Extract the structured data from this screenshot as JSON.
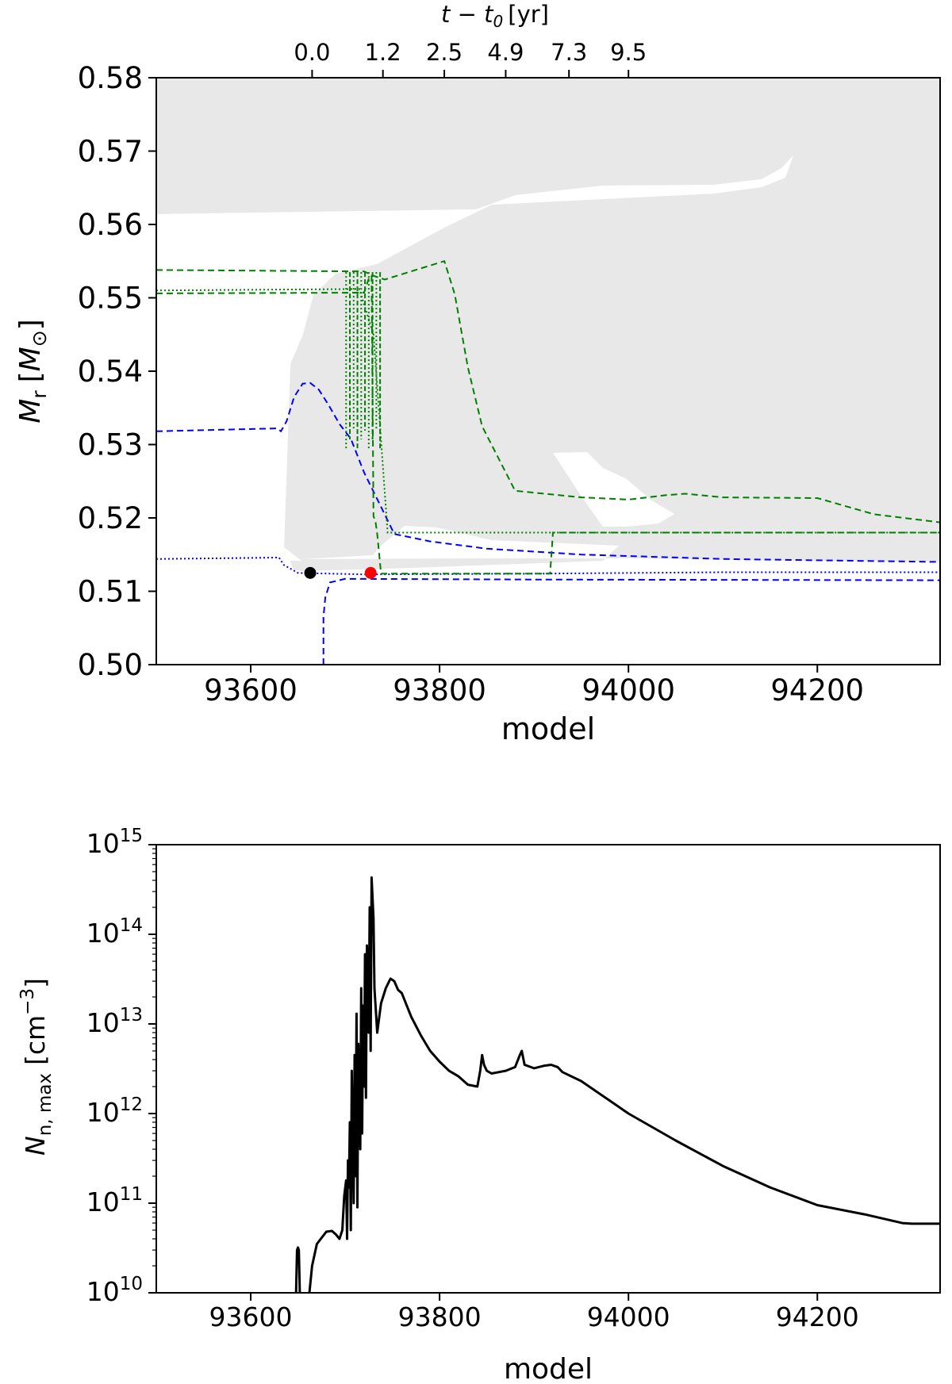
{
  "chart_data": [
    {
      "type": "line",
      "panel": "top",
      "xlabel": "model",
      "ylabel_main": "M",
      "ylabel_sub": "r",
      "ylabel_unit_prefix": "[",
      "ylabel_unit_main": "M",
      "ylabel_unit_sub": "⊙",
      "ylabel_unit_suffix": "]",
      "top_xlabel": "t − t",
      "top_xlabel_sub": "0",
      "top_xlabel_unit": "[yr]",
      "xlim": [
        93500,
        94330
      ],
      "ylim": [
        0.5,
        0.58
      ],
      "x_ticks": [
        93600,
        93800,
        94000,
        94200
      ],
      "x_tick_labels": [
        "93600",
        "93800",
        "94000",
        "94200"
      ],
      "y_ticks": [
        0.5,
        0.51,
        0.52,
        0.53,
        0.54,
        0.55,
        0.56,
        0.57,
        0.58
      ],
      "y_tick_labels": [
        "0.50",
        "0.51",
        "0.52",
        "0.53",
        "0.54",
        "0.55",
        "0.56",
        "0.57",
        "0.58"
      ],
      "top_ticks_x": [
        93665,
        93740,
        93805,
        93870,
        93937,
        94000
      ],
      "top_tick_labels": [
        "0.0",
        "1.2",
        "2.5",
        "4.9",
        "7.3",
        "9.5"
      ],
      "convective_region_color": "#e8e8e8",
      "series": [
        {
          "color": "#0000ff",
          "style": "dashed",
          "x": [
            93500,
            93628,
            93632,
            93638,
            93646,
            93655,
            93663,
            93672,
            93682,
            93694,
            93706,
            93720,
            93738,
            93752,
            93790,
            93850,
            93950,
            94100,
            94330
          ],
          "y": [
            0.5318,
            0.5322,
            0.5318,
            0.5332,
            0.5365,
            0.5383,
            0.5384,
            0.5375,
            0.5355,
            0.5328,
            0.5308,
            0.5262,
            0.5215,
            0.5178,
            0.5168,
            0.5158,
            0.515,
            0.5144,
            0.514
          ]
        },
        {
          "color": "#0000ff",
          "style": "dotted",
          "x": [
            93500,
            93630,
            93635,
            93650,
            93720,
            93900,
            94100,
            94330
          ],
          "y": [
            0.5144,
            0.5146,
            0.5136,
            0.5125,
            0.5123,
            0.5124,
            0.5126,
            0.5126
          ]
        },
        {
          "color": "#0000ff",
          "style": "dashed",
          "x": [
            93677,
            93677,
            93679,
            93684,
            93700,
            93900,
            94330
          ],
          "y": [
            0.5,
            0.5065,
            0.5092,
            0.5112,
            0.5117,
            0.5116,
            0.5115
          ]
        },
        {
          "color": "#008000",
          "style": "dashed",
          "x": [
            93500,
            93720,
            93730,
            93742,
            93805,
            93816,
            93830,
            93845,
            93880,
            93950,
            94000,
            94040,
            94060,
            94100,
            94200,
            94260,
            94330
          ],
          "y": [
            0.5538,
            0.5536,
            0.553,
            0.5525,
            0.555,
            0.5505,
            0.5405,
            0.5325,
            0.5237,
            0.5228,
            0.5225,
            0.5231,
            0.5233,
            0.5228,
            0.5227,
            0.5205,
            0.5194
          ]
        },
        {
          "color": "#008000",
          "style": "dashed",
          "x": [
            93500,
            93720,
            93726,
            93728,
            93730,
            93732,
            93734,
            93738,
            93800,
            93917,
            93920,
            94330
          ],
          "y": [
            0.5506,
            0.5507,
            0.553,
            0.553,
            0.5202,
            0.5196,
            0.5178,
            0.5124,
            0.5124,
            0.5124,
            0.518,
            0.518
          ]
        },
        {
          "color": "#008000",
          "style": "dotted",
          "x": [
            93500,
            93715,
            93730,
            93745,
            93800,
            94330
          ],
          "y": [
            0.551,
            0.5512,
            0.545,
            0.518,
            0.518,
            0.518
          ]
        }
      ],
      "spikes_green": [
        93701,
        93705,
        93709,
        93713,
        93717,
        93721,
        93725,
        93729,
        93733,
        93737
      ],
      "markers": [
        {
          "x": 93663,
          "y": 0.5125,
          "color": "#000000"
        },
        {
          "x": 93727,
          "y": 0.5125,
          "color": "#ff0000"
        }
      ]
    },
    {
      "type": "line",
      "panel": "bottom",
      "xlabel": "model",
      "ylabel_main": "N",
      "ylabel_sub": "n, max",
      "ylabel_unit": "[cm",
      "ylabel_unit_exp": "−3",
      "ylabel_unit_close": "]",
      "yscale": "log",
      "xlim": [
        93500,
        94330
      ],
      "ylim": [
        10000000000.0,
        1000000000000000.0
      ],
      "x_ticks": [
        93600,
        93800,
        94000,
        94200
      ],
      "x_tick_labels": [
        "93600",
        "93800",
        "94000",
        "94200"
      ],
      "y_tick_exps": [
        10,
        11,
        12,
        13,
        14,
        15
      ],
      "y_tick_base": "10",
      "series": [
        {
          "color": "#000000",
          "style": "solid",
          "x": [
            93648,
            93649,
            93650,
            93651,
            93652
          ],
          "y": [
            10000000000.0,
            30000000000.0,
            32000000000.0,
            30000000000.0,
            10000000000.0
          ]
        },
        {
          "color": "#000000",
          "style": "solid",
          "x": [
            93660,
            93665,
            93670,
            93680,
            93686,
            93690,
            93694,
            93697,
            93699,
            93701,
            93702,
            93703,
            93704,
            93705,
            93706,
            93707,
            93709,
            93710,
            93711,
            93712,
            93713,
            93714,
            93716,
            93717,
            93718,
            93719,
            93720,
            93721,
            93722,
            93723,
            93725,
            93726,
            93727,
            93728,
            93730,
            93731,
            93734,
            93738,
            93743,
            93748,
            93752,
            93756,
            93760,
            93770,
            93780,
            93790,
            93800,
            93810,
            93820,
            93830,
            93840,
            93843,
            93845,
            93847,
            93850,
            93855,
            93870,
            93880,
            93885,
            93887,
            93890,
            93900,
            93910,
            93918,
            93925,
            93930,
            93950,
            94000,
            94050,
            94100,
            94150,
            94200,
            94250,
            94290,
            94300,
            94330
          ],
          "y": [
            6000000000.0,
            20000000000.0,
            35000000000.0,
            48000000000.0,
            49000000000.0,
            45000000000.0,
            40000000000.0,
            50000000000.0,
            120000000000.0,
            180000000000.0,
            40000000000.0,
            300000000000.0,
            150000000000.0,
            800000000000.0,
            50000000000.0,
            3000000000000.0,
            100000000000.0,
            4500000000000.0,
            200000000000.0,
            13000000000000.0,
            90000000000.0,
            6000000000000.0,
            400000000000.0,
            25000000000000.0,
            600000000000.0,
            16000000000000.0,
            2000000000000.0,
            60000000000000.0,
            1500000000000.0,
            75000000000000.0,
            8000000000000.0,
            200000000000000.0,
            5000000000000.0,
            430000000000000.0,
            150000000000000.0,
            25000000000000.0,
            8000000000000.0,
            17000000000000.0,
            25000000000000.0,
            32000000000000.0,
            30000000000000.0,
            24000000000000.0,
            22000000000000.0,
            12000000000000.0,
            7500000000000.0,
            5000000000000.0,
            3800000000000.0,
            3000000000000.0,
            2600000000000.0,
            2100000000000.0,
            2000000000000.0,
            3000000000000.0,
            4500000000000.0,
            3500000000000.0,
            3000000000000.0,
            2800000000000.0,
            3000000000000.0,
            3300000000000.0,
            4500000000000.0,
            5000000000000.0,
            3500000000000.0,
            3200000000000.0,
            3400000000000.0,
            3500000000000.0,
            3300000000000.0,
            2900000000000.0,
            2300000000000.0,
            1000000000000.0,
            500000000000.0,
            260000000000.0,
            150000000000.0,
            95000000000.0,
            75000000000.0,
            60000000000.0,
            59000000000.0,
            59000000000.0
          ]
        }
      ]
    }
  ]
}
